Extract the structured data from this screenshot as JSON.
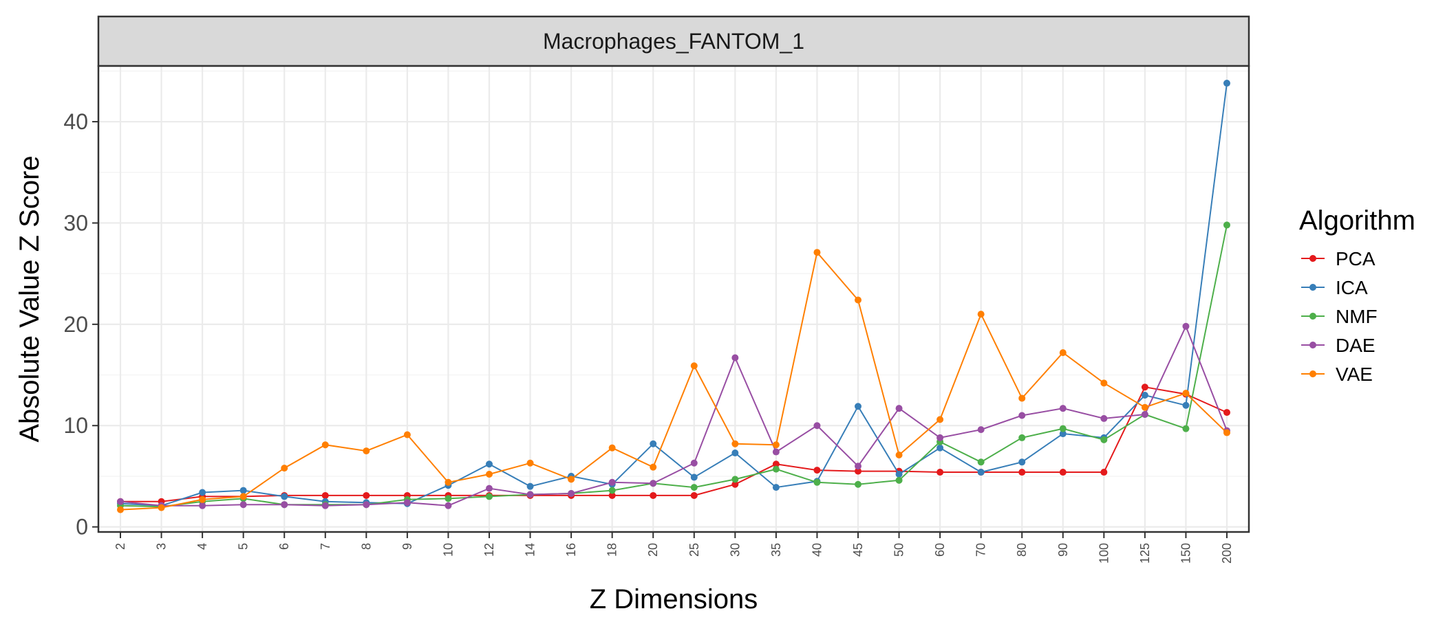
{
  "chart_data": {
    "type": "line",
    "facet_label": "Macrophages_FANTOM_1",
    "xlabel": "Z Dimensions",
    "ylabel": "Absolute Value Z Score",
    "categories": [
      "2",
      "3",
      "4",
      "5",
      "6",
      "7",
      "8",
      "9",
      "10",
      "12",
      "14",
      "16",
      "18",
      "20",
      "25",
      "30",
      "35",
      "40",
      "45",
      "50",
      "60",
      "70",
      "80",
      "90",
      "100",
      "125",
      "150",
      "200"
    ],
    "ylim": [
      -0.5,
      45.5
    ],
    "yticks": [
      0,
      10,
      20,
      30,
      40
    ],
    "grid": true,
    "legend": {
      "title": "Algorithm",
      "position": "right"
    },
    "series": [
      {
        "name": "PCA",
        "color": "#e41a1c",
        "values": [
          2.5,
          2.5,
          3.0,
          3.0,
          3.1,
          3.1,
          3.1,
          3.1,
          3.1,
          3.1,
          3.1,
          3.1,
          3.1,
          3.1,
          3.1,
          4.2,
          6.2,
          5.6,
          5.5,
          5.5,
          5.4,
          5.4,
          5.4,
          5.4,
          5.4,
          13.8,
          13.1,
          11.3
        ]
      },
      {
        "name": "ICA",
        "color": "#377eb8",
        "values": [
          2.3,
          2.1,
          3.4,
          3.6,
          3.0,
          2.5,
          2.4,
          2.3,
          4.1,
          6.2,
          4.0,
          5.0,
          4.2,
          8.2,
          4.9,
          7.3,
          3.9,
          4.5,
          11.9,
          5.2,
          7.8,
          5.4,
          6.4,
          9.2,
          8.8,
          13.0,
          12.0,
          43.8
        ]
      },
      {
        "name": "NMF",
        "color": "#4daf4a",
        "values": [
          2.1,
          2.0,
          2.5,
          2.8,
          2.2,
          2.2,
          2.2,
          2.7,
          2.8,
          3.0,
          3.2,
          3.3,
          3.6,
          4.3,
          3.9,
          4.7,
          5.7,
          4.4,
          4.2,
          4.6,
          8.4,
          6.4,
          8.8,
          9.7,
          8.6,
          11.1,
          9.7,
          29.8
        ]
      },
      {
        "name": "DAE",
        "color": "#984ea3",
        "values": [
          2.5,
          2.1,
          2.1,
          2.2,
          2.2,
          2.1,
          2.2,
          2.4,
          2.1,
          3.8,
          3.2,
          3.3,
          4.4,
          4.3,
          6.3,
          16.7,
          7.4,
          10.0,
          6.0,
          11.7,
          8.8,
          9.6,
          11.0,
          11.7,
          10.7,
          11.1,
          19.8,
          9.5
        ]
      },
      {
        "name": "VAE",
        "color": "#ff7f00",
        "values": [
          1.7,
          1.9,
          2.7,
          3.0,
          5.8,
          8.1,
          7.5,
          9.1,
          4.4,
          5.2,
          6.3,
          4.7,
          7.8,
          5.9,
          15.9,
          8.2,
          8.1,
          27.1,
          22.4,
          7.1,
          10.6,
          21.0,
          12.7,
          17.2,
          14.2,
          11.8,
          13.2,
          9.3
        ]
      }
    ]
  }
}
